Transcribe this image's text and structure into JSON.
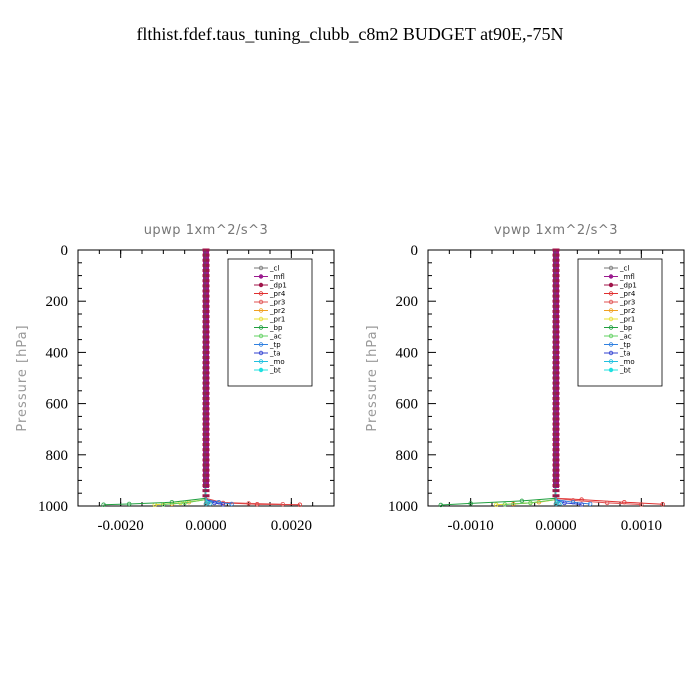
{
  "title": "flthist.fdef.taus_tuning_clubb_c8m2  BUDGET at90E,-75N",
  "colors": {
    "_cl": "#777777",
    "_mfl": "#9b1a8f",
    "_dp1": "#a0144a",
    "_pr4": "#e03030",
    "_pr3": "#e05050",
    "_pr2": "#f0a020",
    "_pr1": "#e8e030",
    "_bp": "#20a040",
    "_ac": "#60d060",
    "_tp": "#3080e0",
    "_ta": "#3040d0",
    "_mo": "#20c0e0",
    "_bt": "#20e0e0"
  },
  "legend": [
    "_cl",
    "_mfl",
    "_dp1",
    "_pr4",
    "_pr3",
    "_pr2",
    "_pr1",
    "_bp",
    "_ac",
    "_tp",
    "_ta",
    "_mo",
    "_bt"
  ],
  "chart_data": [
    {
      "type": "line",
      "title": "upwp   1xm^2/s^3",
      "ylabel": "Pressure [hPa]",
      "xlim": [
        -0.003,
        0.003
      ],
      "ylim": [
        1000,
        0
      ],
      "xticks": [
        -0.002,
        0.0,
        0.002
      ],
      "xtick_labels": [
        "-0.0020",
        "0.0000",
        "0.0020"
      ],
      "yticks": [
        0,
        200,
        400,
        600,
        800,
        1000
      ],
      "ytick_labels": [
        "0",
        "200",
        "400",
        "600",
        "800",
        "1000"
      ],
      "series": [
        {
          "name": "_cl",
          "x": [
            0,
            0,
            5e-05,
            0.0001
          ],
          "y": [
            0,
            960,
            985,
            992
          ]
        },
        {
          "name": "_mfl",
          "x": [
            0,
            0,
            0
          ],
          "y": [
            0,
            970,
            992
          ]
        },
        {
          "name": "_dp1",
          "x": [
            0,
            0,
            0
          ],
          "y": [
            0,
            970,
            992
          ]
        },
        {
          "name": "_pr4",
          "x": [
            0,
            0,
            0.0004,
            0.0012,
            0.0022
          ],
          "y": [
            0,
            970,
            988,
            993,
            995
          ]
        },
        {
          "name": "_pr3",
          "x": [
            0,
            0,
            0.0003,
            0.001,
            0.0018
          ],
          "y": [
            0,
            970,
            985,
            990,
            993
          ]
        },
        {
          "name": "_pr2",
          "x": [
            0,
            0,
            -0.0004,
            -0.0008
          ],
          "y": [
            0,
            975,
            985,
            992
          ]
        },
        {
          "name": "_pr1",
          "x": [
            0,
            0,
            -0.0006,
            -0.0012
          ],
          "y": [
            0,
            975,
            988,
            995
          ]
        },
        {
          "name": "_bp",
          "x": [
            0,
            0,
            -0.0008,
            -0.0018,
            -0.0024
          ],
          "y": [
            0,
            970,
            985,
            992,
            995
          ]
        },
        {
          "name": "_ac",
          "x": [
            0,
            0,
            -0.0005,
            -0.001
          ],
          "y": [
            0,
            975,
            988,
            994
          ]
        },
        {
          "name": "_tp",
          "x": [
            0,
            0,
            0.0003,
            0.0006
          ],
          "y": [
            0,
            975,
            985,
            992
          ]
        },
        {
          "name": "_ta",
          "x": [
            0,
            0,
            0.0002,
            0.0004
          ],
          "y": [
            0,
            975,
            988,
            994
          ]
        },
        {
          "name": "_mo",
          "x": [
            0,
            0,
            0.0001
          ],
          "y": [
            0,
            975,
            990
          ]
        },
        {
          "name": "_bt",
          "x": [
            0,
            0,
            0
          ],
          "y": [
            0,
            975,
            992
          ]
        }
      ]
    },
    {
      "type": "line",
      "title": "vpwp   1xm^2/s^3",
      "ylabel": "Pressure [hPa]",
      "xlim": [
        -0.0015,
        0.0015
      ],
      "ylim": [
        1000,
        0
      ],
      "xticks": [
        -0.001,
        0.0,
        0.001
      ],
      "xtick_labels": [
        "-0.0010",
        "0.0000",
        "0.0010"
      ],
      "yticks": [
        0,
        200,
        400,
        600,
        800,
        1000
      ],
      "ytick_labels": [
        "0",
        "200",
        "400",
        "600",
        "800",
        "1000"
      ],
      "series": [
        {
          "name": "_cl",
          "x": [
            0,
            0,
            3e-05
          ],
          "y": [
            0,
            960,
            990
          ]
        },
        {
          "name": "_mfl",
          "x": [
            0,
            0,
            0
          ],
          "y": [
            0,
            970,
            992
          ]
        },
        {
          "name": "_dp1",
          "x": [
            0,
            0,
            0
          ],
          "y": [
            0,
            970,
            992
          ]
        },
        {
          "name": "_pr4",
          "x": [
            0,
            0,
            0.0003,
            0.0008,
            0.00125
          ],
          "y": [
            0,
            970,
            975,
            985,
            993
          ]
        },
        {
          "name": "_pr3",
          "x": [
            0,
            0,
            0.0002,
            0.0006,
            0.001
          ],
          "y": [
            0,
            970,
            978,
            988,
            994
          ]
        },
        {
          "name": "_pr2",
          "x": [
            0,
            0,
            -0.0002,
            -0.0005
          ],
          "y": [
            0,
            975,
            985,
            992
          ]
        },
        {
          "name": "_pr1",
          "x": [
            0,
            0,
            -0.0003,
            -0.0007
          ],
          "y": [
            0,
            975,
            988,
            995
          ]
        },
        {
          "name": "_bp",
          "x": [
            0,
            0,
            -0.0004,
            -0.001,
            -0.00135
          ],
          "y": [
            0,
            970,
            980,
            990,
            996
          ]
        },
        {
          "name": "_ac",
          "x": [
            0,
            0,
            -0.0003,
            -0.0006
          ],
          "y": [
            0,
            975,
            988,
            994
          ]
        },
        {
          "name": "_tp",
          "x": [
            0,
            0,
            0.0002,
            0.0004
          ],
          "y": [
            0,
            975,
            985,
            992
          ]
        },
        {
          "name": "_ta",
          "x": [
            0,
            0,
            0.0001,
            0.0003
          ],
          "y": [
            0,
            975,
            988,
            994
          ]
        },
        {
          "name": "_mo",
          "x": [
            0,
            0,
            5e-05
          ],
          "y": [
            0,
            975,
            990
          ]
        },
        {
          "name": "_bt",
          "x": [
            0,
            0,
            0
          ],
          "y": [
            0,
            975,
            992
          ]
        }
      ]
    }
  ]
}
